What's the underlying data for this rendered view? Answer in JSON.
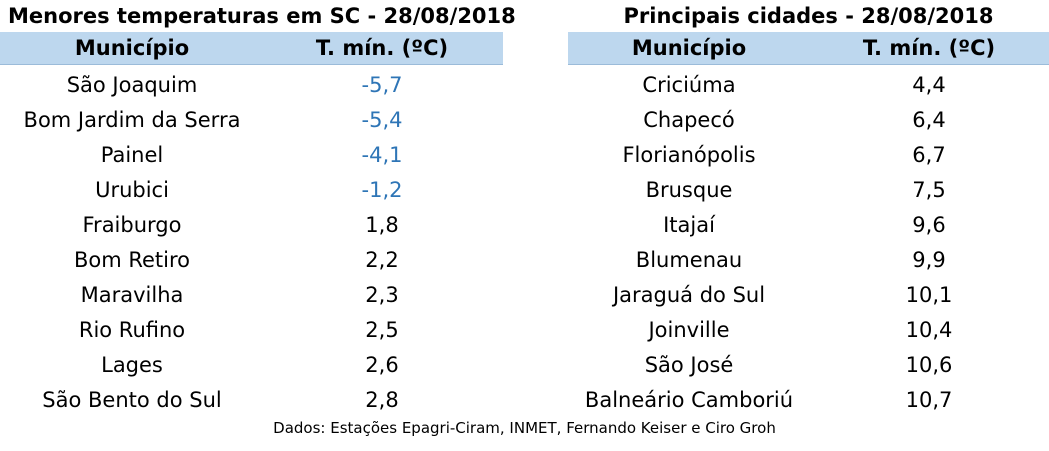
{
  "left_table": {
    "title": "Menores temperaturas em SC - 28/08/2018",
    "headers": [
      "Município",
      "T. mín. (ºC)"
    ],
    "negative_color": "#2e75b6",
    "rows": [
      {
        "city": "São Joaquim",
        "temp": "-5,7",
        "negative": true
      },
      {
        "city": "Bom Jardim da Serra",
        "temp": "-5,4",
        "negative": true
      },
      {
        "city": "Painel",
        "temp": "-4,1",
        "negative": true
      },
      {
        "city": "Urubici",
        "temp": "-1,2",
        "negative": true
      },
      {
        "city": "Fraiburgo",
        "temp": "1,8",
        "negative": false
      },
      {
        "city": "Bom Retiro",
        "temp": "2,2",
        "negative": false
      },
      {
        "city": "Maravilha",
        "temp": "2,3",
        "negative": false
      },
      {
        "city": "Rio Rufino",
        "temp": "2,5",
        "negative": false
      },
      {
        "city": "Lages",
        "temp": "2,6",
        "negative": false
      },
      {
        "city": "São Bento do Sul",
        "temp": "2,8",
        "negative": false
      }
    ]
  },
  "right_table": {
    "title": "Principais cidades - 28/08/2018",
    "headers": [
      "Município",
      "T. mín. (ºC)"
    ],
    "rows": [
      {
        "city": "Criciúma",
        "temp": "4,4"
      },
      {
        "city": "Chapecó",
        "temp": "6,4"
      },
      {
        "city": "Florianópolis",
        "temp": "6,7"
      },
      {
        "city": "Brusque",
        "temp": "7,5"
      },
      {
        "city": "Itajaí",
        "temp": "9,6"
      },
      {
        "city": "Blumenau",
        "temp": "9,9"
      },
      {
        "city": "Jaraguá do Sul",
        "temp": "10,1"
      },
      {
        "city": "Joinville",
        "temp": "10,4"
      },
      {
        "city": "São José",
        "temp": "10,6"
      },
      {
        "city": "Balneário Camboriú",
        "temp": "10,7"
      }
    ]
  },
  "header_background": "#bdd7ee",
  "footer": "Dados: Estações Epagri-Ciram, INMET, Fernando Keiser e Ciro Groh"
}
